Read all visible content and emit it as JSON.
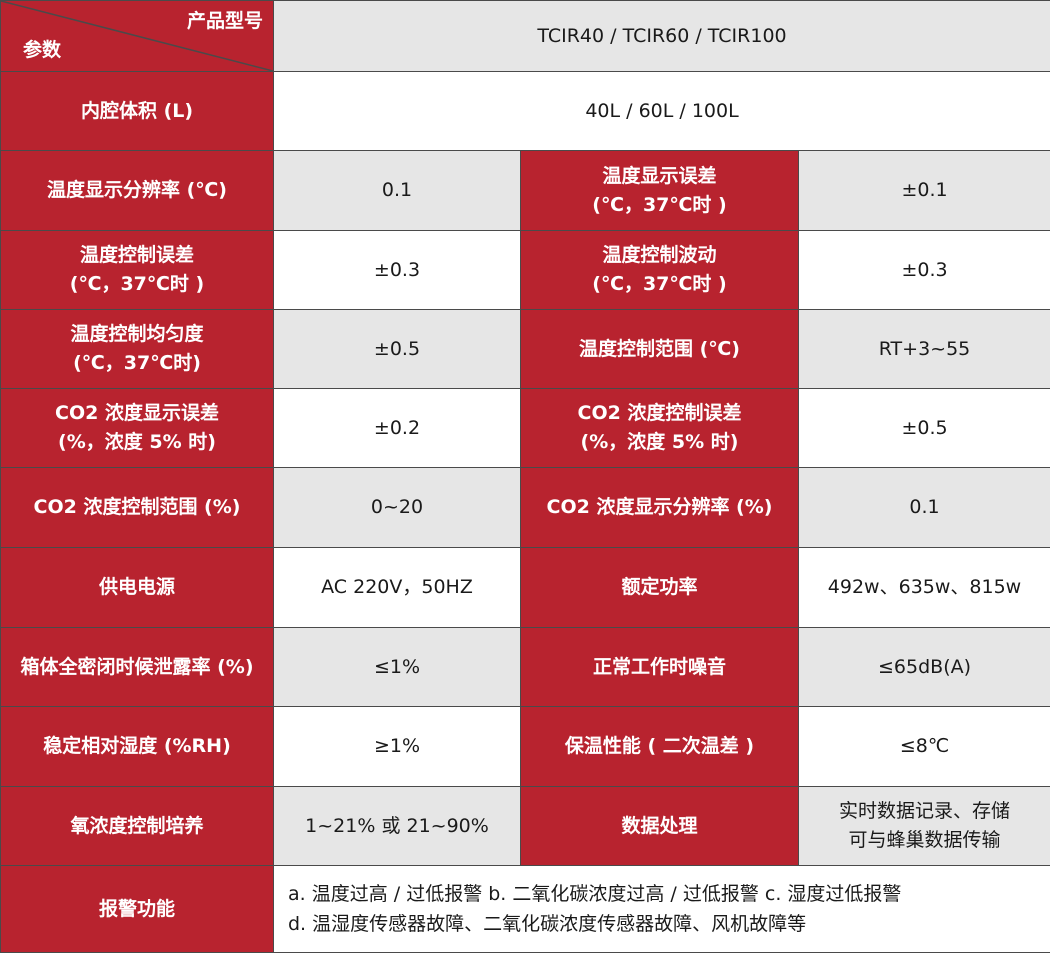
{
  "header": {
    "corner_top": "产品型号",
    "corner_bottom": "参数",
    "models": "TCIR40 / TCIR60 / TCIR100"
  },
  "rows": {
    "volume": {
      "label": "内腔体积 (L)",
      "value": "40L / 60L / 100L"
    },
    "temp_resolution": {
      "label": "温度显示分辨率 (℃)",
      "value": "0.1"
    },
    "temp_display_error": {
      "label1": "温度显示误差",
      "label2": "(℃，37℃时 )",
      "value": "±0.1"
    },
    "temp_control_error": {
      "label1": "温度控制误差",
      "label2": "(℃，37℃时 )",
      "value": "±0.3"
    },
    "temp_fluctuation": {
      "label1": "温度控制波动",
      "label2": "(℃，37℃时 )",
      "value": "±0.3"
    },
    "temp_uniformity": {
      "label1": "温度控制均匀度",
      "label2": "(℃，37℃时)",
      "value": "±0.5"
    },
    "temp_range": {
      "label": "温度控制范围 (℃)",
      "value": "RT+3~55"
    },
    "co2_display_error": {
      "label1": "CO2 浓度显示误差",
      "label2": "(%，浓度 5% 时)",
      "value": "±0.2"
    },
    "co2_control_error": {
      "label1": "CO2 浓度控制误差",
      "label2": "(%，浓度 5% 时)",
      "value": "±0.5"
    },
    "co2_range": {
      "label": "CO2 浓度控制范围 (%)",
      "value": "0~20"
    },
    "co2_resolution": {
      "label": "CO2 浓度显示分辨率 (%)",
      "value": "0.1"
    },
    "power_supply": {
      "label": "供电电源",
      "value": "AC 220V，50HZ"
    },
    "rated_power": {
      "label": "额定功率",
      "value": "492w、635w、815w"
    },
    "leak_rate": {
      "label": "箱体全密闭时候泄露率 (%)",
      "value": "≤1%"
    },
    "noise": {
      "label": "正常工作时噪音",
      "value": "≤65dB(A)"
    },
    "humidity": {
      "label": "稳定相对湿度 (%RH)",
      "value": "≥1%"
    },
    "insulation": {
      "label": "保温性能 ( 二次温差 )",
      "value": "≤8℃"
    },
    "oxygen": {
      "label": "氧浓度控制培养",
      "value": "1~21% 或 21~90%"
    },
    "data_processing": {
      "label": "数据处理",
      "value1": "实时数据记录、存储",
      "value2": "可与蜂巢数据传输"
    },
    "alarm": {
      "label": "报警功能",
      "value1": "a. 温度过高 / 过低报警 b. 二氧化碳浓度过高 / 过低报警 c. 湿度过低报警",
      "value2": "d. 温湿度传感器故障、二氧化碳浓度传感器故障、风机故障等"
    }
  },
  "colors": {
    "label_bg": "#b8232f",
    "grey_bg": "#e6e6e6",
    "border": "#4a4a4a"
  }
}
